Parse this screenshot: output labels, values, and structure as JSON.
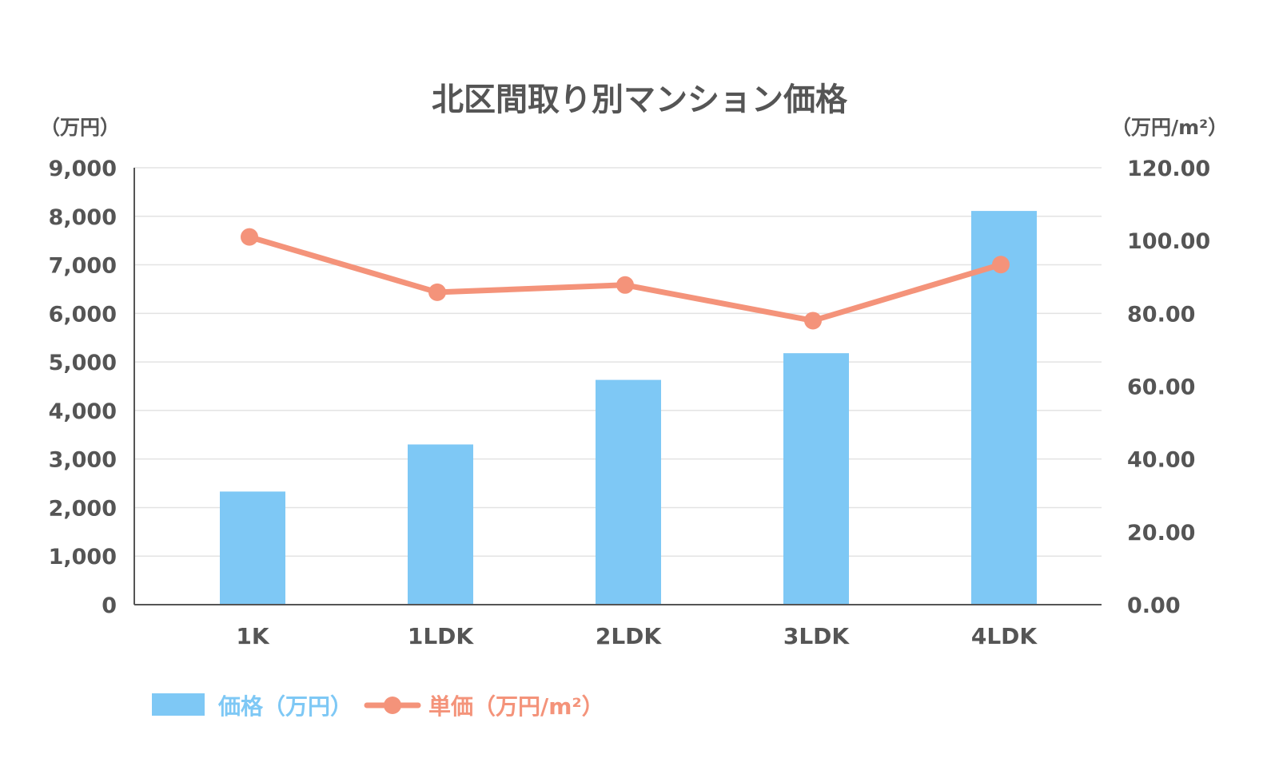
{
  "chart_data": {
    "type": "bar",
    "title": "北区間取り別マンション価格",
    "left_axis_unit": "（万円）",
    "right_axis_unit": "（万円/m²）",
    "categories": [
      "1K",
      "1LDK",
      "2LDK",
      "3LDK",
      "4LDK"
    ],
    "left_ylim": [
      0,
      9000
    ],
    "left_ticks": [
      "0",
      "1,000",
      "2,000",
      "3,000",
      "4,000",
      "5,000",
      "6,000",
      "7,000",
      "8,000",
      "9,000"
    ],
    "right_ylim": [
      0,
      120
    ],
    "right_ticks": [
      "0.00",
      "20.00",
      "40.00",
      "60.00",
      "80.00",
      "100.00",
      "120.00"
    ],
    "grid": true,
    "legend_position": "bottom-left",
    "series": [
      {
        "name": "価格（万円）",
        "kind": "bar",
        "axis": "left",
        "color": "#7ec8f5",
        "values": [
          2330,
          3300,
          4630,
          5180,
          8110
        ]
      },
      {
        "name": "単価（万円/m²）",
        "kind": "line",
        "axis": "right",
        "color": "#f4937a",
        "values": [
          101.0,
          85.8,
          87.8,
          78.0,
          93.4
        ]
      }
    ]
  }
}
